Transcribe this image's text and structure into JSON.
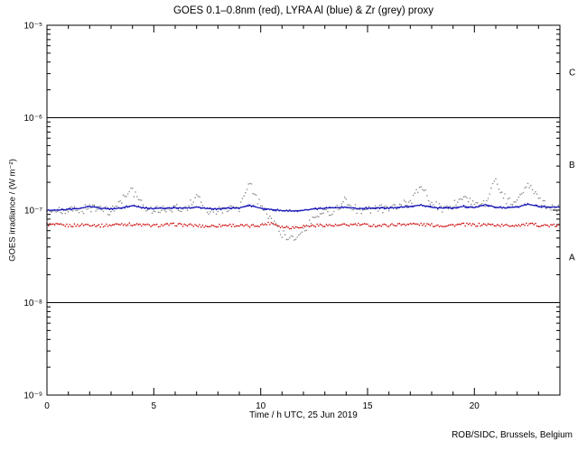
{
  "footer": {
    "credit": "ROB/SIDC, Brussels, Belgium"
  },
  "chart_data": {
    "type": "scatter",
    "title": "GOES 0.1–0.8nm (red), LYRA Al (blue) & Zr (grey) proxy",
    "xlabel": "Time / h UTC, 25 Jun 2019",
    "ylabel": "GOES irradiance / (W m⁻²)",
    "xlim": [
      0,
      24
    ],
    "x_ticks": [
      0,
      5,
      10,
      15,
      20
    ],
    "x_minor_step": 1,
    "ylog": true,
    "ylim": [
      1e-09,
      1e-05
    ],
    "y_tick_exponents": [
      -5,
      -6,
      -7,
      -8,
      -9
    ],
    "grid": false,
    "legend": "in title",
    "hlines": [
      1e-06,
      1e-08
    ],
    "flare_class_labels": [
      {
        "label": "C",
        "y": 3.16e-06
      },
      {
        "label": "B",
        "y": 3.16e-07
      },
      {
        "label": "A",
        "y": 3.16e-08
      }
    ],
    "series": [
      {
        "name": "GOES 0.1-0.8nm",
        "color": "#cc0000",
        "scatter": 0.016,
        "dot": 0.8,
        "solid_line": false,
        "x_start": 0,
        "x_step": 0.5,
        "y": [
          7e-08,
          6.9e-08,
          6.8e-08,
          6.9e-08,
          7e-08,
          6.8e-08,
          6.9e-08,
          7.1e-08,
          7e-08,
          6.9e-08,
          6.8e-08,
          6.9e-08,
          7e-08,
          6.9e-08,
          6.8e-08,
          6.7e-08,
          6.8e-08,
          6.9e-08,
          6.8e-08,
          6.7e-08,
          6.9e-08,
          7.3e-08,
          6.6e-08,
          6.5e-08,
          6.7e-08,
          6.8e-08,
          6.9e-08,
          6.8e-08,
          6.9e-08,
          7e-08,
          6.9e-08,
          6.8e-08,
          6.9e-08,
          7e-08,
          7.1e-08,
          7e-08,
          6.9e-08,
          6.8e-08,
          6.9e-08,
          7e-08,
          6.9e-08,
          7e-08,
          6.9e-08,
          6.8e-08,
          6.9e-08,
          7e-08,
          6.9e-08,
          6.8e-08,
          6.8e-08
        ]
      },
      {
        "name": "LYRA Zr proxy",
        "color": "#8c8c8c",
        "scatter": 0.045,
        "dot": 0.8,
        "solid_line": false,
        "x_start": 0,
        "x_step": 0.5,
        "y": [
          9.5e-08,
          9.6e-08,
          9.8e-08,
          1e-07,
          1.05e-07,
          1e-07,
          9.8e-08,
          1.3e-07,
          1.6e-07,
          1.1e-07,
          1e-07,
          1.02e-07,
          1.05e-07,
          1.02e-07,
          1.45e-07,
          1e-07,
          9.8e-08,
          1e-07,
          1.05e-07,
          1.9e-07,
          1.1e-07,
          8e-08,
          5.5e-08,
          5e-08,
          6e-08,
          8.5e-08,
          9.5e-08,
          1e-07,
          1.3e-07,
          1e-07,
          1e-07,
          1.05e-07,
          1e-07,
          1.1e-07,
          1.25e-07,
          1.8e-07,
          1.2e-07,
          1.05e-07,
          1.15e-07,
          1.5e-07,
          1.1e-07,
          1.2e-07,
          2.1e-07,
          1.3e-07,
          1.2e-07,
          1.95e-07,
          1.3e-07,
          1.1e-07,
          1.05e-07
        ]
      },
      {
        "name": "LYRA Al proxy",
        "color": "#1414b4",
        "scatter": 0.01,
        "dot": 0.8,
        "solid_line": true,
        "x_start": 0,
        "x_step": 0.5,
        "y": [
          1e-07,
          1e-07,
          1.02e-07,
          1.04e-07,
          1.1e-07,
          1.05e-07,
          1.03e-07,
          1.06e-07,
          1.12e-07,
          1.06e-07,
          1.04e-07,
          1.05e-07,
          1.06e-07,
          1.05e-07,
          1.08e-07,
          1.04e-07,
          1.03e-07,
          1.05e-07,
          1.06e-07,
          1.12e-07,
          1.05e-07,
          1.02e-07,
          9.9e-08,
          9.8e-08,
          1e-07,
          1.03e-07,
          1.05e-07,
          1.06e-07,
          1.08e-07,
          1.04e-07,
          1.05e-07,
          1.06e-07,
          1.05e-07,
          1.08e-07,
          1.1e-07,
          1.14e-07,
          1.07e-07,
          1.05e-07,
          1.06e-07,
          1.1e-07,
          1.06e-07,
          1.15e-07,
          1.08e-07,
          1.06e-07,
          1.08e-07,
          1.16e-07,
          1.1e-07,
          1.08e-07,
          1.08e-07
        ]
      }
    ]
  }
}
